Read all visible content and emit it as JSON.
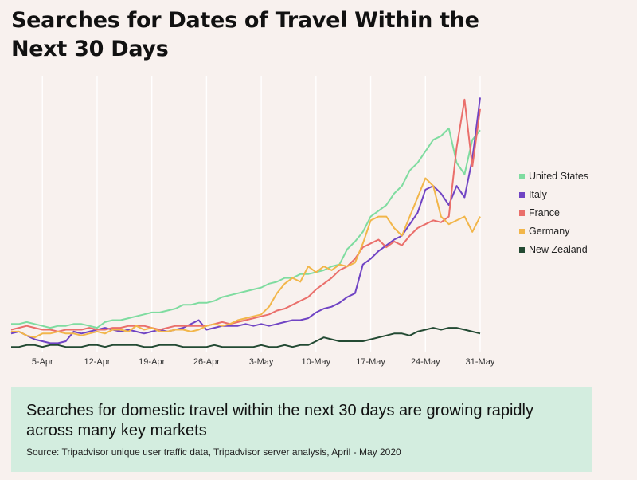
{
  "title": "Searches for Dates of Travel Within the Next 30 Days",
  "callout": {
    "text": "Searches for domestic travel within the next 30 days are growing rapidly across many key markets",
    "source": "Source: Tripadvisor unique user traffic data, Tripadvisor server analysis, April - May 2020"
  },
  "chart_data": {
    "type": "line",
    "title": "Searches for Dates of Travel Within the Next 30 Days",
    "xlabel": "",
    "ylabel": "",
    "x_start": "1-Apr",
    "x_end": "31-May",
    "x_ticks": [
      "5-Apr",
      "12-Apr",
      "19-Apr",
      "26-Apr",
      "3-May",
      "10-May",
      "17-May",
      "24-May",
      "31-May"
    ],
    "x": [
      "1-Apr",
      "2-Apr",
      "3-Apr",
      "4-Apr",
      "5-Apr",
      "6-Apr",
      "7-Apr",
      "8-Apr",
      "9-Apr",
      "10-Apr",
      "11-Apr",
      "12-Apr",
      "13-Apr",
      "14-Apr",
      "15-Apr",
      "16-Apr",
      "17-Apr",
      "18-Apr",
      "19-Apr",
      "20-Apr",
      "21-Apr",
      "22-Apr",
      "23-Apr",
      "24-Apr",
      "25-Apr",
      "26-Apr",
      "27-Apr",
      "28-Apr",
      "29-Apr",
      "30-Apr",
      "1-May",
      "2-May",
      "3-May",
      "4-May",
      "5-May",
      "6-May",
      "7-May",
      "8-May",
      "9-May",
      "10-May",
      "11-May",
      "12-May",
      "13-May",
      "14-May",
      "15-May",
      "16-May",
      "17-May",
      "18-May",
      "19-May",
      "20-May",
      "21-May",
      "22-May",
      "23-May",
      "24-May",
      "25-May",
      "26-May",
      "27-May",
      "28-May",
      "29-May",
      "30-May",
      "31-May"
    ],
    "y_axis_shown": false,
    "grid": "vertical",
    "legend_position": "right",
    "colors": {
      "United States": "#7fdca0",
      "Italy": "#7044c4",
      "France": "#ea6f6b",
      "Germany": "#f2b64a",
      "New Zealand": "#234a33"
    },
    "series": [
      {
        "name": "United States",
        "values": [
          14,
          14,
          15,
          14,
          13,
          12,
          13,
          13,
          14,
          14,
          13,
          12,
          15,
          16,
          16,
          17,
          18,
          19,
          20,
          20,
          21,
          22,
          24,
          24,
          25,
          25,
          26,
          28,
          29,
          30,
          31,
          32,
          33,
          35,
          36,
          38,
          38,
          40,
          40,
          41,
          42,
          44,
          45,
          53,
          57,
          62,
          70,
          73,
          76,
          82,
          86,
          94,
          98,
          104,
          110,
          112,
          116,
          98,
          92,
          110,
          115
        ]
      },
      {
        "name": "Italy",
        "values": [
          9,
          10,
          8,
          6,
          5,
          4,
          4,
          5,
          10,
          9,
          10,
          11,
          12,
          11,
          10,
          11,
          10,
          9,
          10,
          11,
          10,
          11,
          12,
          14,
          16,
          11,
          12,
          13,
          13,
          13,
          14,
          13,
          14,
          13,
          14,
          15,
          16,
          16,
          17,
          20,
          22,
          23,
          25,
          28,
          30,
          45,
          48,
          52,
          55,
          58,
          60,
          66,
          72,
          84,
          86,
          82,
          76,
          86,
          80,
          100,
          132
        ]
      },
      {
        "name": "France",
        "values": [
          11,
          12,
          13,
          12,
          11,
          11,
          10,
          11,
          11,
          11,
          12,
          11,
          11,
          12,
          12,
          13,
          13,
          13,
          12,
          11,
          12,
          13,
          13,
          13,
          13,
          13,
          14,
          15,
          14,
          15,
          16,
          17,
          18,
          19,
          21,
          22,
          24,
          26,
          28,
          32,
          35,
          38,
          42,
          44,
          48,
          54,
          56,
          58,
          54,
          57,
          55,
          60,
          64,
          66,
          68,
          67,
          70,
          106,
          131,
          96,
          126
        ]
      },
      {
        "name": "Germany",
        "values": [
          10,
          10,
          8,
          7,
          9,
          9,
          10,
          9,
          9,
          8,
          9,
          10,
          9,
          11,
          11,
          10,
          13,
          11,
          12,
          10,
          10,
          11,
          11,
          10,
          11,
          13,
          14,
          13,
          14,
          16,
          17,
          18,
          19,
          23,
          30,
          35,
          38,
          36,
          44,
          41,
          44,
          42,
          45,
          44,
          46,
          56,
          68,
          70,
          70,
          64,
          60,
          70,
          80,
          90,
          86,
          70,
          66,
          68,
          70,
          62,
          70
        ]
      },
      {
        "name": "New Zealand",
        "values": [
          2,
          2,
          3,
          3,
          2,
          3,
          3,
          2,
          2,
          2,
          3,
          3,
          2,
          3,
          3,
          3,
          3,
          2,
          2,
          3,
          3,
          3,
          2,
          2,
          2,
          2,
          3,
          2,
          2,
          2,
          2,
          2,
          3,
          2,
          2,
          3,
          2,
          3,
          3,
          5,
          7,
          6,
          5,
          5,
          5,
          5,
          6,
          7,
          8,
          9,
          9,
          8,
          10,
          11,
          12,
          11,
          12,
          12,
          11,
          10,
          9
        ]
      }
    ]
  }
}
